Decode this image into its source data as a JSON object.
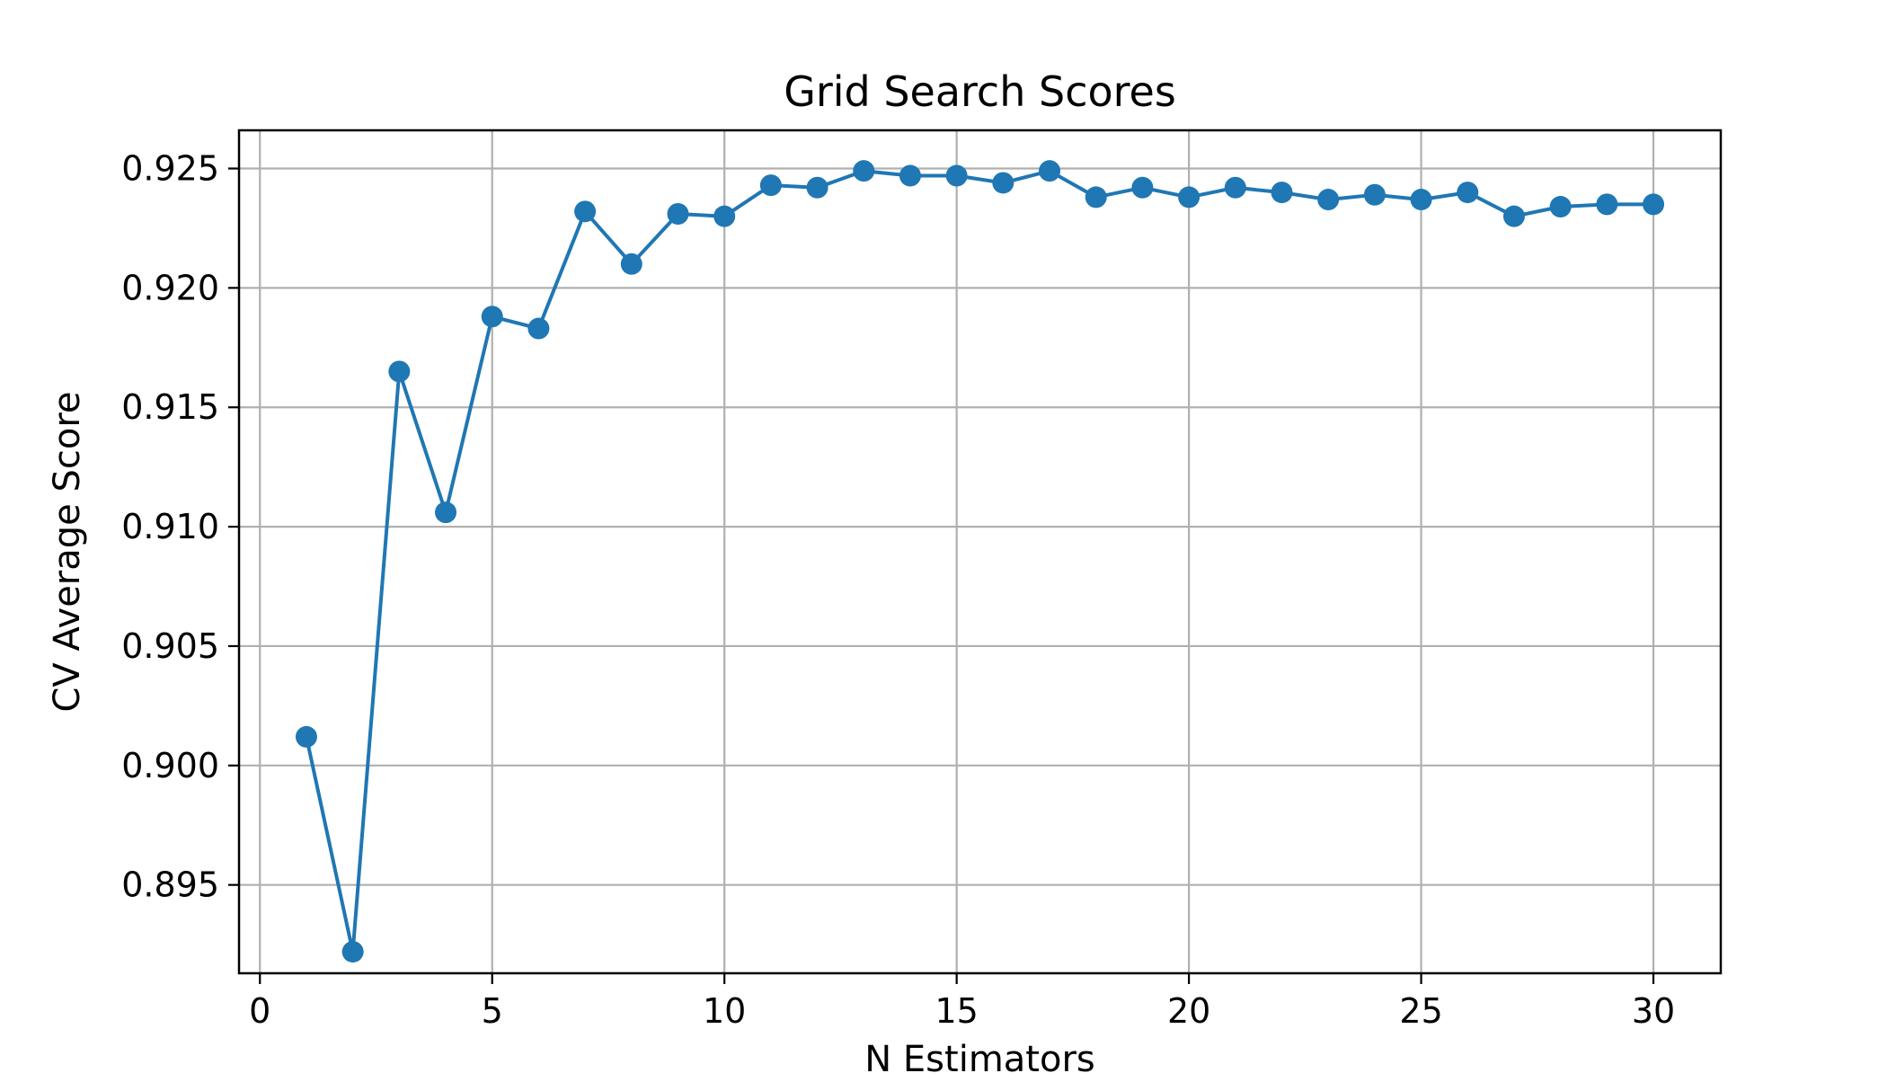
{
  "chart_data": {
    "type": "line",
    "title": "Grid Search Scores",
    "xlabel": "N Estimators",
    "ylabel": "CV Average Score",
    "xlim": [
      -0.45,
      31.45
    ],
    "ylim": [
      0.8913,
      0.9266
    ],
    "xticks": [
      0,
      5,
      10,
      15,
      20,
      25,
      30
    ],
    "xtick_labels": [
      "0",
      "5",
      "10",
      "15",
      "20",
      "25",
      "30"
    ],
    "yticks": [
      0.895,
      0.9,
      0.905,
      0.91,
      0.915,
      0.92,
      0.925
    ],
    "ytick_labels": [
      "0.895",
      "0.900",
      "0.905",
      "0.910",
      "0.915",
      "0.920",
      "0.925"
    ],
    "grid": true,
    "legend": false,
    "marker": "circle",
    "line_color": "#1f77b4",
    "grid_color": "#b0b0b0",
    "series": [
      {
        "x": [
          1,
          2,
          3,
          4,
          5,
          6,
          7,
          8,
          9,
          10,
          11,
          12,
          13,
          14,
          15,
          16,
          17,
          18,
          19,
          20,
          21,
          22,
          23,
          24,
          25,
          26,
          27,
          28,
          29,
          30
        ],
        "values": [
          0.9012,
          0.8922,
          0.9165,
          0.9106,
          0.9188,
          0.9183,
          0.9232,
          0.921,
          0.9231,
          0.923,
          0.9243,
          0.9242,
          0.9249,
          0.9247,
          0.9247,
          0.9244,
          0.9249,
          0.9238,
          0.9242,
          0.9238,
          0.9242,
          0.924,
          0.9237,
          0.9239,
          0.9237,
          0.924,
          0.923,
          0.9234,
          0.9235,
          0.9235
        ]
      }
    ]
  }
}
